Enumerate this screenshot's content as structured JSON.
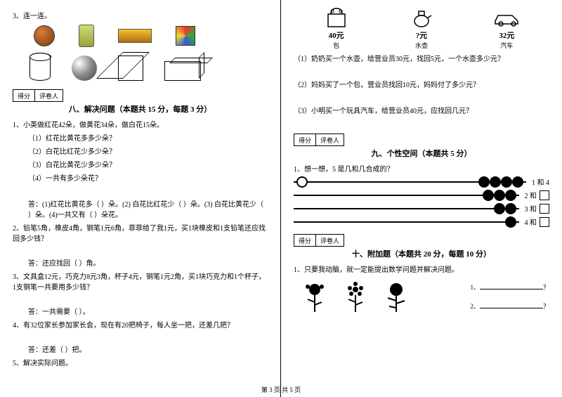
{
  "left": {
    "q3": "3、连一连。",
    "score_labels": {
      "s1": "得分",
      "s2": "评卷人"
    },
    "section8_title": "八、解决问题（本题共 15 分，每题 3 分）",
    "q8_1": "1、小英做红花42朵，做黄花34朵，做白花15朵。",
    "q8_1_1": "（1）红花比黄花多多少朵？",
    "q8_1_2": "（2）白花比红花少多少朵？",
    "q8_1_3": "（3）白花比黄花少多少朵？",
    "q8_1_4": "（4）一共有多少朵花？",
    "q8_1_ans": "答：(1)红花比黄花多（   ）朵。(2) 白花比红花少（   ）朵。(3) 白花比黄花少（   ）朵。(4)一共又有（   ）朵花。",
    "q8_2": "2、铅笔5角，橡皮4角，钢笔1元6角，菲菲给了我1元，买1块橡皮和1支铅笔还应找回多少钱？",
    "q8_2_ans": "答：还应找回（   ）角。",
    "q8_3": "3、文具盒12元，巧克力8元3角，杯子4元，钢笔1元2角，买1块巧克力和1个杯子，1支钢笔一共要用多少钱？",
    "q8_3_ans": "答：一共需要（   ）。",
    "q8_4": "4、有32位家长参加家长会，现在有20把椅子，每人坐一把，还差几把？",
    "q8_4_ans": "答：还差（   ）把。",
    "q8_5": "5、解决实际问题。"
  },
  "right": {
    "items": [
      {
        "price": "40元",
        "label": "包"
      },
      {
        "price": "?元",
        "label": "水壶"
      },
      {
        "price": "32元",
        "label": "汽车"
      }
    ],
    "q5_1": "（1）奶奶买一个水壶，给营业员30元，找回5元，一个水壶多少元？",
    "q5_2": "（2）妈妈买了一个包，营业员找回10元，妈妈付了多少元？",
    "q5_3": "（3）小明买一个玩具汽车，给营业员40元，应找回几元？",
    "score_labels": {
      "s1": "得分",
      "s2": "评卷人"
    },
    "section9_title": "九、个性空间（本题共 5 分）",
    "q9_1": "1、想一想，5 是几和几合成的？",
    "abacus": [
      {
        "left_open": 1,
        "right_fill": 4,
        "label": "1 和 4"
      },
      {
        "left_open": 0,
        "right_fill": 3,
        "label_prefix": "2 和"
      },
      {
        "left_open": 0,
        "right_fill": 2,
        "label_prefix": "3 和"
      },
      {
        "left_open": 0,
        "right_fill": 1,
        "label_prefix": "4 和"
      }
    ],
    "section10_title": "十、附加题（本题共 20 分，每题 10 分）",
    "q10_1": "1、只要我动脑，就一定能提出数学问题并解决问题。",
    "blank1": "1、",
    "blank2": "2、",
    "qmark": "？"
  },
  "footer": "第 3 页 共 5 页",
  "colors": {
    "text": "#000000",
    "bg": "#ffffff"
  }
}
